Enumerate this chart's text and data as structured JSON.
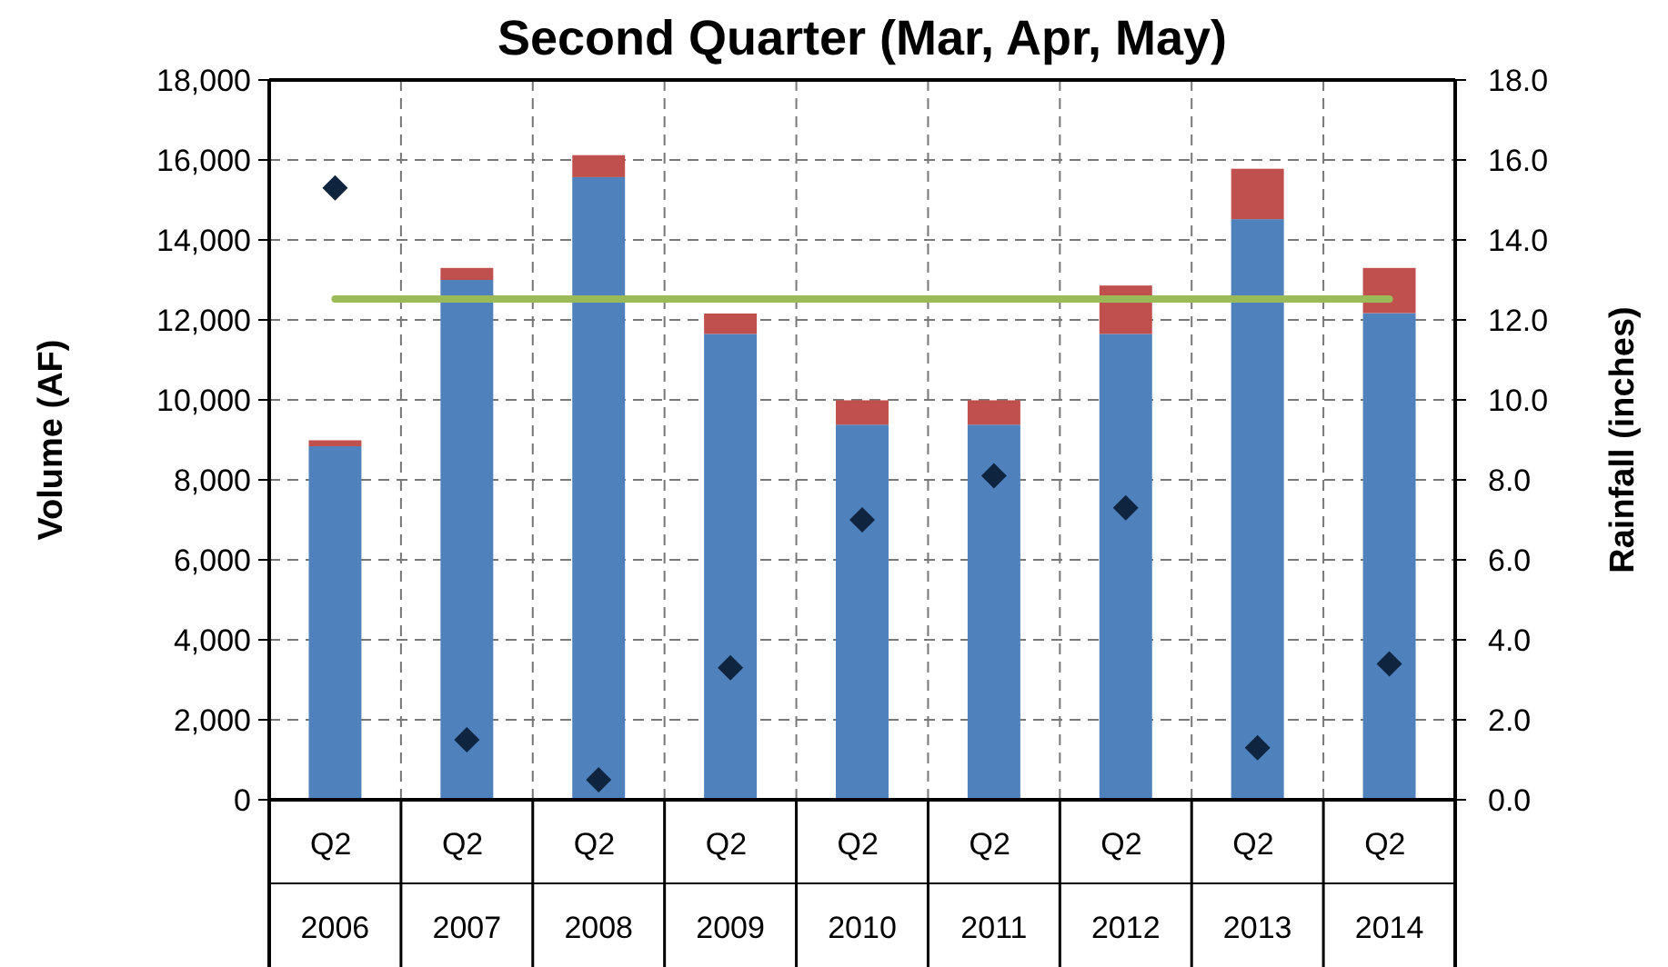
{
  "chart_data": {
    "type": "bar",
    "title": "Second Quarter (Mar, Apr, May)",
    "ylabel": "Volume (AF)",
    "y2label": "Rainfall (inches)",
    "categories": [
      "Q2 2006",
      "Q2 2007",
      "Q2 2008",
      "Q2 2009",
      "Q2 2010",
      "Q2 2011",
      "Q2 2012",
      "Q2 2013",
      "Q2 2014"
    ],
    "stacked": true,
    "series": [
      {
        "color": "#4f81bd",
        "values": [
          8840,
          13000,
          15570,
          11650,
          9380,
          9380,
          11650,
          14520,
          12170
        ]
      },
      {
        "color": "#c0504d",
        "values": [
          150,
          300,
          550,
          510,
          610,
          610,
          1210,
          1260,
          1130
        ]
      },
      {
        "type": "line",
        "color": "#9bbb59",
        "marker": "none",
        "values": [
          12520,
          12520,
          12520,
          12520,
          12520,
          12520,
          12520,
          12520,
          12520
        ]
      },
      {
        "type": "scatter",
        "axis": "y2",
        "color": "#0f243e",
        "marker": "diamond",
        "values": [
          15.3,
          1.5,
          0.5,
          3.3,
          7.0,
          8.1,
          7.3,
          1.3,
          3.4
        ]
      }
    ],
    "ylim": [
      0,
      18000
    ],
    "yticks": [
      {
        "value": 0,
        "label": "0"
      },
      {
        "value": 2000,
        "label": "2,000"
      },
      {
        "value": 4000,
        "label": "4,000"
      },
      {
        "value": 6000,
        "label": "6,000"
      },
      {
        "value": 8000,
        "label": "8,000"
      },
      {
        "value": 10000,
        "label": "10,000"
      },
      {
        "value": 12000,
        "label": "12,000"
      },
      {
        "value": 14000,
        "label": "14,000"
      },
      {
        "value": 16000,
        "label": "16,000"
      },
      {
        "value": 18000,
        "label": "18,000"
      }
    ],
    "y2lim": [
      0,
      18
    ],
    "y2ticks": [
      {
        "value": 0,
        "label": "0.0"
      },
      {
        "value": 2,
        "label": "2.0"
      },
      {
        "value": 4,
        "label": "4.0"
      },
      {
        "value": 6,
        "label": "6.0"
      },
      {
        "value": 8,
        "label": "8.0"
      },
      {
        "value": 10,
        "label": "10.0"
      },
      {
        "value": 12,
        "label": "12.0"
      },
      {
        "value": 14,
        "label": "14.0"
      },
      {
        "value": 16,
        "label": "16.0"
      },
      {
        "value": 18,
        "label": "18.0"
      }
    ],
    "grid": true
  }
}
